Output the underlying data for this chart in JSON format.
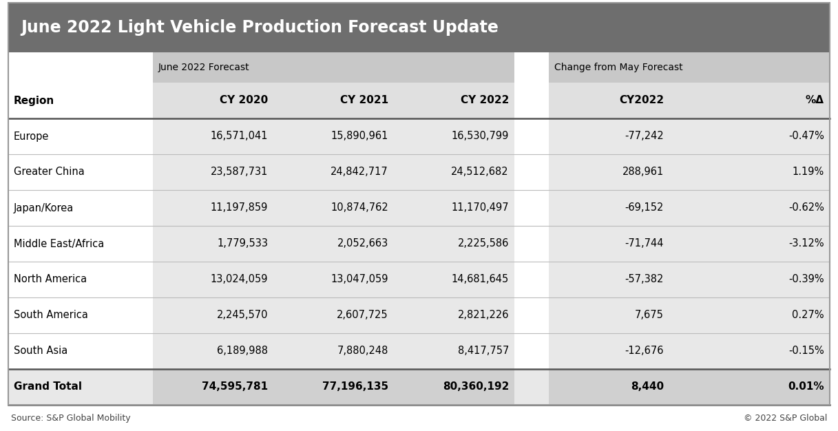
{
  "title": "June 2022 Light Vehicle Production Forecast Update",
  "title_bg": "#6e6e6e",
  "title_color": "#ffffff",
  "subheader_june": "June 2022 Forecast",
  "subheader_change": "Change from May Forecast",
  "col_headers": [
    "Region",
    "CY 2020",
    "CY 2021",
    "CY 2022",
    "CY2022",
    "%Δ"
  ],
  "rows": [
    [
      "Europe",
      "16,571,041",
      "15,890,961",
      "16,530,799",
      "-77,242",
      "-0.47%"
    ],
    [
      "Greater China",
      "23,587,731",
      "24,842,717",
      "24,512,682",
      "288,961",
      "1.19%"
    ],
    [
      "Japan/Korea",
      "11,197,859",
      "10,874,762",
      "11,170,497",
      "-69,152",
      "-0.62%"
    ],
    [
      "Middle East/Africa",
      "1,779,533",
      "2,052,663",
      "2,225,586",
      "-71,744",
      "-3.12%"
    ],
    [
      "North America",
      "13,024,059",
      "13,047,059",
      "14,681,645",
      "-57,382",
      "-0.39%"
    ],
    [
      "South America",
      "2,245,570",
      "2,607,725",
      "2,821,226",
      "7,675",
      "0.27%"
    ],
    [
      "South Asia",
      "6,189,988",
      "7,880,248",
      "8,417,757",
      "-12,676",
      "-0.15%"
    ]
  ],
  "grand_total": [
    "Grand Total",
    "74,595,781",
    "77,196,135",
    "80,360,192",
    "8,440",
    "0.01%"
  ],
  "source_left": "Source: S&P Global Mobility",
  "source_right": "© 2022 S&P Global",
  "col_aligns": [
    "left",
    "right",
    "right",
    "right",
    "right",
    "right"
  ],
  "bg_white": "#ffffff",
  "bg_light_grey": "#f2f2f2",
  "bg_data_col": "#e8e8e8",
  "bg_subheader": "#c8c8c8",
  "bg_colheader": "#e0e0e0",
  "bg_grandtotal_region": "#e8e8e8",
  "bg_grandtotal_data": "#d0d0d0",
  "border_dark": "#555555",
  "border_light": "#bbbbbb"
}
